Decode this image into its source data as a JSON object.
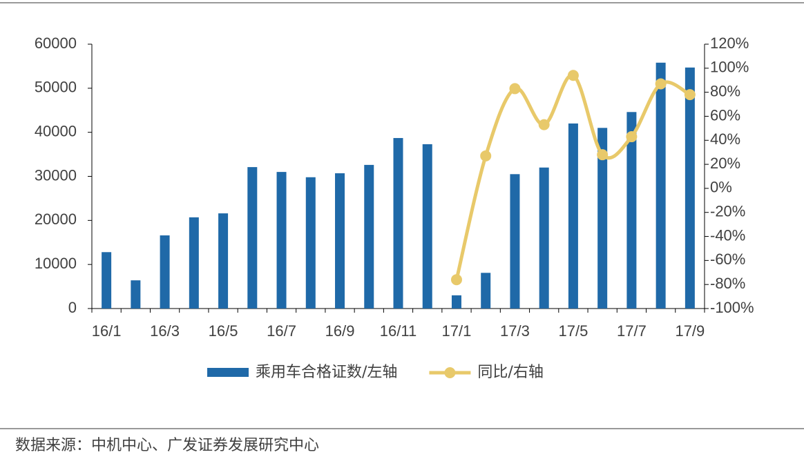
{
  "chart_data": {
    "type": "bar_line",
    "categories": [
      "16/1",
      null,
      "16/3",
      null,
      "16/5",
      null,
      "16/7",
      null,
      "16/9",
      null,
      "16/11",
      null,
      "17/1",
      null,
      "17/3",
      null,
      "17/5",
      null,
      "17/7",
      null,
      "17/9"
    ],
    "series": [
      {
        "name": "乘用车合格证数/左轴",
        "type": "bar",
        "color": "#1f69a8",
        "values": [
          12800,
          6400,
          16600,
          20700,
          21600,
          32100,
          31000,
          29800,
          30700,
          32600,
          38700,
          37300,
          3000,
          8100,
          30500,
          32000,
          42000,
          41000,
          44600,
          55800,
          54700
        ]
      },
      {
        "name": "同比/右轴",
        "type": "line",
        "axis": "y2",
        "color": "#e8c96a",
        "values": [
          null,
          null,
          null,
          null,
          null,
          null,
          null,
          null,
          null,
          null,
          null,
          null,
          -76,
          27,
          83,
          53,
          94,
          28,
          43,
          87,
          78
        ]
      }
    ],
    "ylim": [
      0,
      60000
    ],
    "yticks": [
      0,
      10000,
      20000,
      30000,
      40000,
      50000,
      60000
    ],
    "y2lim": [
      -100,
      120
    ],
    "y2ticks": [
      {
        "value": -100,
        "label": "-100%"
      },
      {
        "value": -80,
        "label": "-80%"
      },
      {
        "value": -60,
        "label": "-60%"
      },
      {
        "value": -40,
        "label": "-40%"
      },
      {
        "value": -20,
        "label": "-20%"
      },
      {
        "value": 0,
        "label": "0%"
      },
      {
        "value": 20,
        "label": "20%"
      },
      {
        "value": 40,
        "label": "40%"
      },
      {
        "value": 60,
        "label": "60%"
      },
      {
        "value": 80,
        "label": "80%"
      },
      {
        "value": 100,
        "label": "100%"
      },
      {
        "value": 120,
        "label": "120%"
      }
    ],
    "source": "数据来源：中机中心、广发证券发展研究中心"
  }
}
